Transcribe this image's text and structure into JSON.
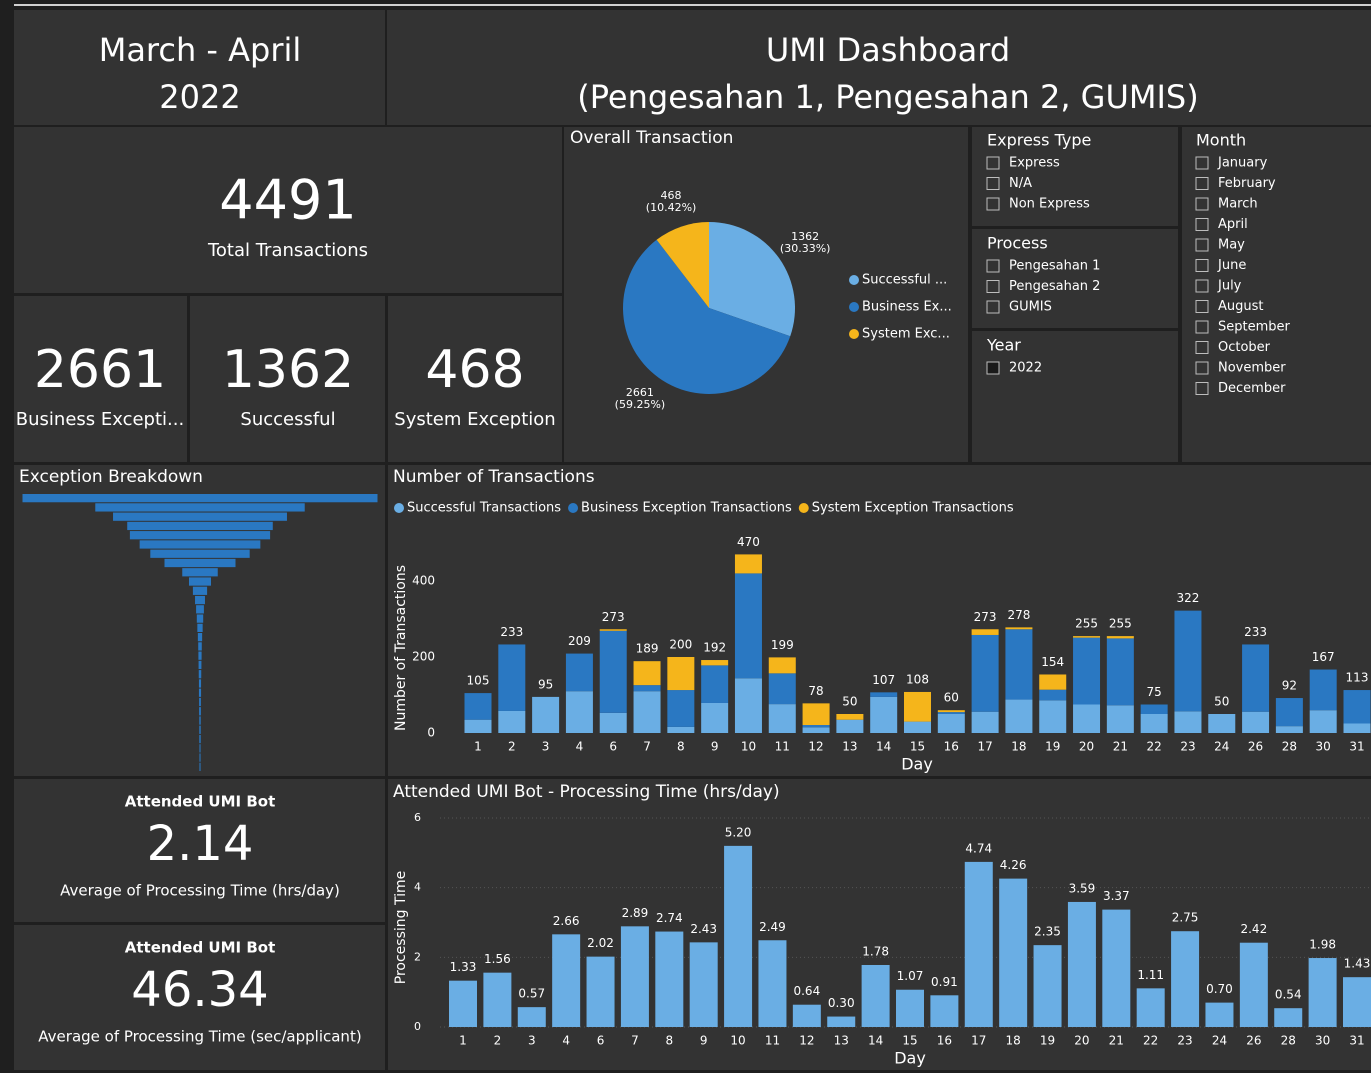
{
  "header": {
    "period_lines": [
      "March - April",
      "2022"
    ],
    "title_lines": [
      "UMI Dashboard",
      "(Pengesahan 1, Pengesahan 2, GUMIS)"
    ]
  },
  "kpis": {
    "total": {
      "value": 4491,
      "label": "Total Transactions"
    },
    "business": {
      "value": 2661,
      "label": "Business Excepti..."
    },
    "successful": {
      "value": 1362,
      "label": "Successful"
    },
    "system": {
      "value": 468,
      "label": "System Exception"
    },
    "hours": {
      "caption": "Attended UMI Bot",
      "value": 2.14,
      "label": "Average of Processing Time (hrs/day)"
    },
    "seconds": {
      "caption": "Attended UMI Bot",
      "value": 46.34,
      "label": "Average of Processing Time (sec/applicant)"
    }
  },
  "slicers": {
    "express_type": {
      "title": "Express Type",
      "items": [
        "Express",
        "N/A",
        "Non Express"
      ]
    },
    "process": {
      "title": "Process",
      "items": [
        "Pengesahan 1",
        "Pengesahan 2",
        "GUMIS"
      ]
    },
    "year": {
      "title": "Year",
      "items": [
        "2022"
      ]
    },
    "month": {
      "title": "Month",
      "items": [
        "January",
        "February",
        "March",
        "April",
        "May",
        "June",
        "July",
        "August",
        "September",
        "October",
        "November",
        "December"
      ]
    }
  },
  "chart_data": [
    {
      "type": "pie",
      "title": "Overall Transaction",
      "categories": [
        "Successful ...",
        "Business Ex...",
        "System Exc..."
      ],
      "values": [
        1362,
        2661,
        468
      ],
      "percent_labels": [
        "(30.33%)",
        "(59.25%)",
        "(10.42%)"
      ],
      "colors": [
        "#6aaee4",
        "#2a78c2",
        "#f5b51b"
      ]
    },
    {
      "type": "funnel",
      "title": "Exception Breakdown",
      "color": "#2a78c2",
      "values": [
        1000,
        590,
        490,
        410,
        395,
        340,
        280,
        200,
        100,
        62,
        40,
        28,
        22,
        18,
        15,
        12,
        10,
        9,
        8,
        7,
        6,
        6,
        5,
        5,
        4,
        4,
        4,
        3,
        3,
        3
      ]
    },
    {
      "type": "stacked_bar",
      "title": "Number of Transactions",
      "x_label": "Day",
      "y_label": "Number of Transactions",
      "categories": [
        "1",
        "2",
        "3",
        "4",
        "6",
        "7",
        "8",
        "9",
        "10",
        "11",
        "12",
        "13",
        "14",
        "15",
        "16",
        "17",
        "18",
        "19",
        "20",
        "21",
        "22",
        "23",
        "24",
        "26",
        "28",
        "30",
        "31"
      ],
      "series": [
        {
          "name": "Successful Transactions",
          "color": "#6aaee4",
          "values": [
            35,
            58,
            95,
            110,
            53,
            110,
            16,
            79,
            144,
            76,
            15,
            35,
            95,
            30,
            50,
            56,
            88,
            86,
            75,
            73,
            50,
            57,
            50,
            56,
            18,
            60,
            25
          ]
        },
        {
          "name": "Business Exception Transactions",
          "color": "#2a78c2",
          "values": [
            70,
            175,
            0,
            99,
            216,
            16,
            97,
            99,
            276,
            81,
            6,
            0,
            12,
            0,
            5,
            202,
            185,
            28,
            176,
            176,
            25,
            265,
            0,
            177,
            74,
            107,
            88
          ]
        },
        {
          "name": "System Exception Transactions",
          "color": "#f5b51b",
          "values": [
            0,
            0,
            0,
            0,
            4,
            63,
            87,
            14,
            50,
            42,
            57,
            15,
            0,
            78,
            5,
            15,
            5,
            40,
            4,
            6,
            0,
            0,
            0,
            0,
            0,
            0,
            0
          ]
        }
      ],
      "totals": [
        105,
        233,
        95,
        209,
        273,
        189,
        200,
        192,
        470,
        199,
        78,
        50,
        107,
        108,
        60,
        273,
        278,
        154,
        255,
        255,
        75,
        322,
        50,
        233,
        92,
        167,
        113
      ],
      "ylim": [
        0,
        500
      ],
      "yticks": [
        0,
        200,
        400
      ]
    },
    {
      "type": "bar",
      "title": "Attended UMI Bot - Processing Time (hrs/day)",
      "x_label": "Day",
      "y_label": "Processing Time",
      "color": "#6aaee4",
      "grid": true,
      "categories": [
        "1",
        "2",
        "3",
        "4",
        "6",
        "7",
        "8",
        "9",
        "10",
        "11",
        "12",
        "13",
        "14",
        "15",
        "16",
        "17",
        "18",
        "19",
        "20",
        "21",
        "22",
        "23",
        "24",
        "26",
        "28",
        "30",
        "31"
      ],
      "values": [
        1.33,
        1.56,
        0.57,
        2.66,
        2.02,
        2.89,
        2.74,
        2.43,
        5.2,
        2.49,
        0.64,
        0.3,
        1.78,
        1.07,
        0.91,
        4.74,
        4.26,
        2.35,
        3.59,
        3.37,
        1.11,
        2.75,
        0.7,
        2.42,
        0.54,
        1.98,
        1.43
      ],
      "value_labels": [
        "1.33",
        "1.56",
        "0.57",
        "2.66",
        "2.02",
        "2.89",
        "2.74",
        "2.43",
        "5.20",
        "2.49",
        "0.64",
        "0.30",
        "1.78",
        "1.07",
        "0.91",
        "4.74",
        "4.26",
        "2.35",
        "3.59",
        "3.37",
        "1.11",
        "2.75",
        "0.70",
        "2.42",
        "0.54",
        "1.98",
        "1.43"
      ],
      "ylim": [
        0,
        6
      ],
      "yticks": [
        0,
        2,
        4,
        6
      ]
    }
  ]
}
